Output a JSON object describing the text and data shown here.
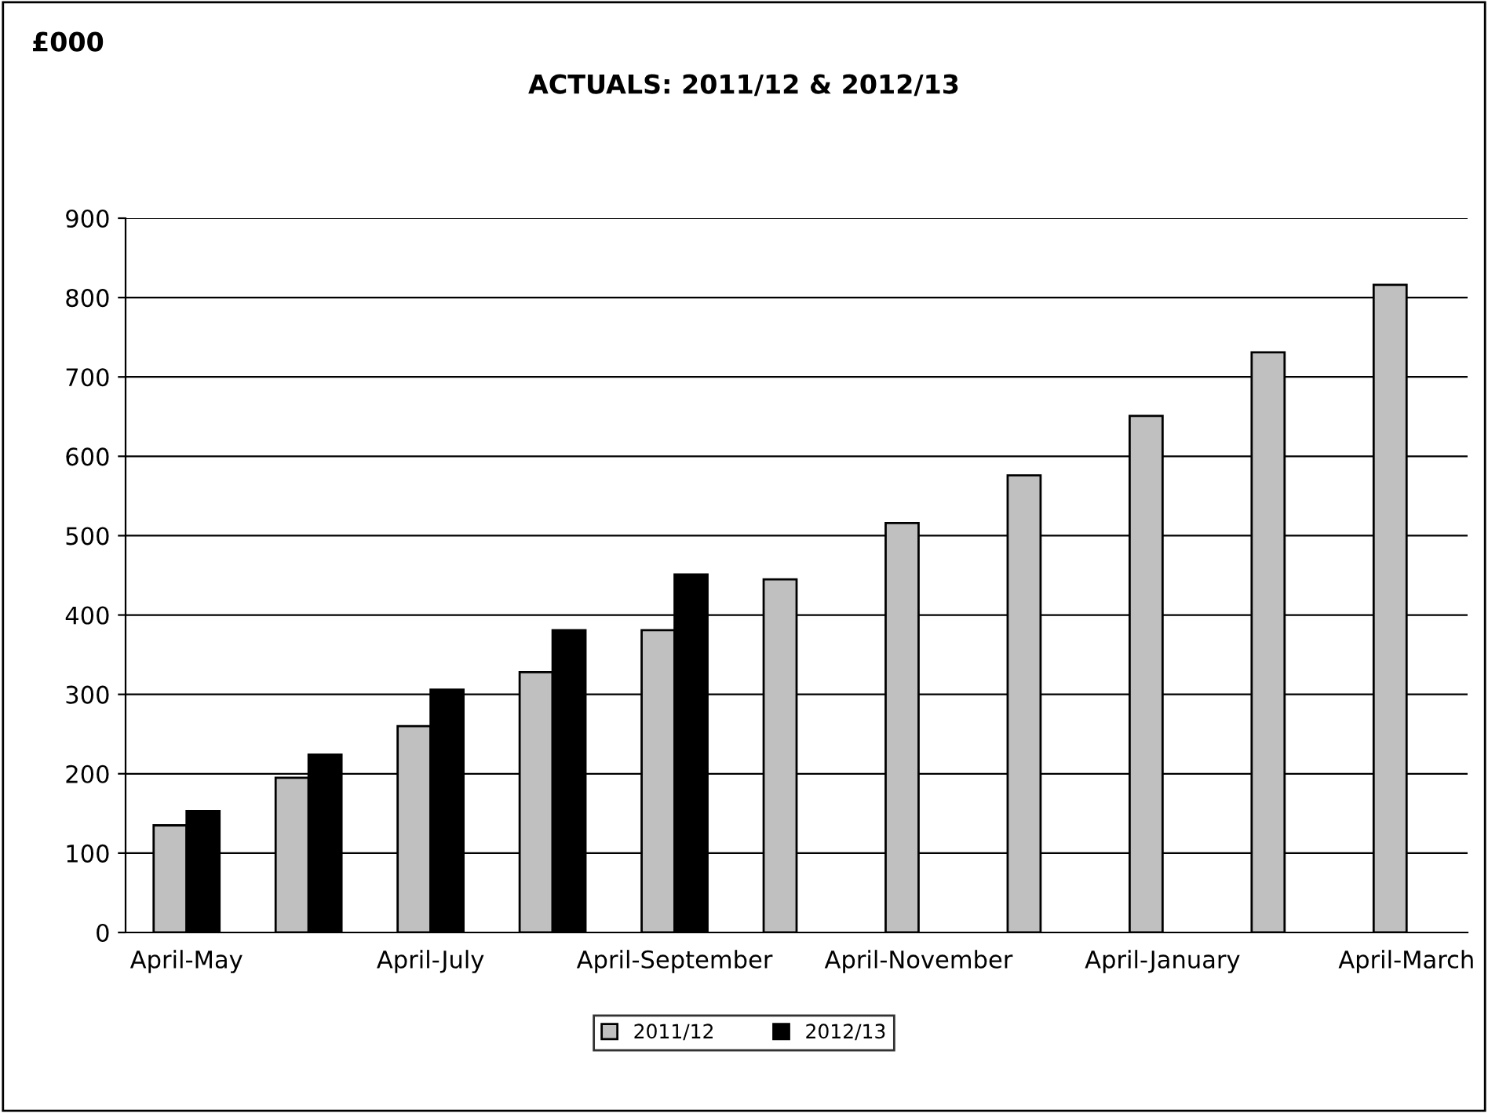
{
  "chart_data": {
    "type": "bar",
    "title": "ACTUALS: 2011/12 & 2012/13",
    "annotations": [
      "£000"
    ],
    "categories": [
      "April-May",
      null,
      "April-July",
      null,
      "April-September",
      null,
      "April-November",
      null,
      "April-January",
      null,
      "April-March"
    ],
    "series": [
      {
        "name": "2011/12",
        "color": "#c0c0c0",
        "values": [
          135,
          195,
          260,
          328,
          381,
          445,
          516,
          576,
          651,
          731,
          816
        ]
      },
      {
        "name": "2012/13",
        "color": "#000000",
        "values": [
          153,
          224,
          306,
          381,
          451,
          null,
          null,
          null,
          null,
          null,
          null
        ]
      }
    ],
    "ylim": [
      0,
      900
    ],
    "yticks": [
      0,
      100,
      200,
      300,
      400,
      500,
      600,
      700,
      800,
      900
    ],
    "grid": "y",
    "legend": "bottom"
  }
}
